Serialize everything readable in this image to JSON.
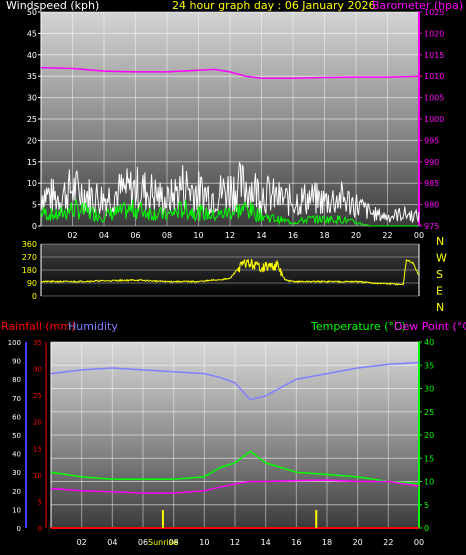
{
  "header": {
    "windspeed_label": "Windspeed (kph)",
    "title": "24 hour graph day : 06 January 2026",
    "barometer_label": "Barometer (hpa)"
  },
  "labels": {
    "rainfall": "Rainfall (mm)",
    "humidity": "Humidity",
    "temperature": "Temperature (°C)",
    "dewpoint": "Dew Point (°C)",
    "sunrise": "Sunrise"
  },
  "colors": {
    "windspeed_label": "#ffffff",
    "title": "#ffff00",
    "barometer": "#ff00ff",
    "wind_gust": "#ffffff",
    "wind_avg": "#00ff00",
    "wind_dir": "#ffff00",
    "rainfall": "#ff0000",
    "humidity": "#8080ff",
    "temperature": "#00ff00",
    "dewpoint": "#ff00ff",
    "sun_marker": "#ffff00",
    "axis_blue": "#4040ff"
  },
  "chart_data": [
    {
      "type": "line",
      "name": "wind-barometer",
      "x_ticks": [
        "02",
        "04",
        "06",
        "08",
        "10",
        "12",
        "14",
        "16",
        "18",
        "20",
        "22",
        "00"
      ],
      "y_left_ticks": [
        "0",
        "5",
        "10",
        "15",
        "20",
        "25",
        "30",
        "35",
        "40",
        "45",
        "50"
      ],
      "y_left_range": [
        0,
        50
      ],
      "y_right_ticks": [
        "975",
        "980",
        "985",
        "990",
        "995",
        "1000",
        "1005",
        "1010",
        "1015",
        "1020",
        "1025"
      ],
      "y_right_range": [
        975,
        1025
      ],
      "grid": true,
      "series": [
        {
          "key": "barometer",
          "axis": "right",
          "x": [
            0,
            2,
            4,
            6,
            8,
            10,
            11,
            12,
            13,
            14,
            16,
            18,
            20,
            22,
            24
          ],
          "values": [
            1012,
            1011.8,
            1011.2,
            1011,
            1011,
            1011.4,
            1011.6,
            1011,
            1010,
            1009.5,
            1009.5,
            1009.7,
            1009.8,
            1009.8,
            1010
          ]
        },
        {
          "key": "wind_gust",
          "axis": "left",
          "x": [
            0,
            1,
            2,
            3,
            4,
            5,
            6,
            7,
            8,
            9,
            10,
            11,
            12,
            13,
            14,
            15,
            16,
            17,
            18,
            19,
            20,
            21,
            22,
            23,
            24
          ],
          "values": [
            11,
            9,
            12,
            10,
            9,
            11,
            12,
            11,
            8,
            13,
            11,
            10,
            12,
            13,
            11,
            9,
            8,
            9,
            8,
            9,
            7,
            4,
            3,
            4,
            3
          ]
        },
        {
          "key": "wind_avg",
          "axis": "left",
          "x": [
            0,
            1,
            2,
            3,
            4,
            5,
            6,
            7,
            8,
            9,
            10,
            11,
            12,
            13,
            14,
            15,
            16,
            17,
            18,
            19,
            20,
            21,
            22,
            23,
            24
          ],
          "values": [
            4,
            3,
            5,
            4,
            3,
            4,
            5,
            4,
            3,
            5,
            4,
            3,
            4,
            5,
            3,
            2,
            1,
            2,
            2,
            2,
            1,
            0,
            0,
            0,
            0
          ]
        }
      ]
    },
    {
      "type": "line",
      "name": "wind-direction",
      "y_ticks": [
        "360",
        "270",
        "180",
        "90",
        "0"
      ],
      "y_range": [
        0,
        360
      ],
      "y_right_labels": [
        "N",
        "W",
        "S",
        "E",
        "N"
      ],
      "series": [
        {
          "key": "wind_dir",
          "x": [
            0,
            2,
            4,
            6,
            8,
            10,
            11,
            12,
            12.5,
            13,
            14,
            15,
            15.5,
            16,
            18,
            20,
            21,
            22,
            23,
            23.2,
            23.6,
            24
          ],
          "values": [
            100,
            100,
            105,
            110,
            100,
            100,
            110,
            120,
            190,
            230,
            200,
            210,
            110,
            100,
            100,
            100,
            90,
            85,
            80,
            250,
            230,
            140
          ]
        }
      ]
    },
    {
      "type": "line",
      "name": "temp-humidity-rain",
      "x_ticks": [
        "02",
        "04",
        "06",
        "08",
        "10",
        "12",
        "14",
        "16",
        "18",
        "20",
        "22",
        "00"
      ],
      "humidity_ticks": [
        "0",
        "10",
        "20",
        "30",
        "40",
        "50",
        "60",
        "70",
        "80",
        "90",
        "100"
      ],
      "humidity_range": [
        0,
        100
      ],
      "rainfall_ticks": [
        "0",
        "5",
        "10",
        "15",
        "20",
        "25",
        "30",
        "35"
      ],
      "rainfall_range": [
        0,
        35
      ],
      "temperature_ticks": [
        "0",
        "5",
        "10",
        "15",
        "20",
        "25",
        "30",
        "35",
        "40"
      ],
      "temperature_range": [
        0,
        40
      ],
      "series": [
        {
          "key": "humidity",
          "x": [
            0,
            2,
            4,
            6,
            8,
            10,
            11,
            12,
            13,
            14,
            16,
            18,
            20,
            22,
            24
          ],
          "values": [
            83,
            85,
            86,
            85,
            84,
            83,
            81,
            78,
            69,
            71,
            80,
            83,
            86,
            88,
            89
          ]
        },
        {
          "key": "temperature",
          "x": [
            0,
            2,
            4,
            6,
            8,
            10,
            11,
            12,
            13,
            14,
            16,
            18,
            20,
            22,
            24
          ],
          "values": [
            12,
            11,
            10.5,
            10.5,
            10.5,
            11,
            13,
            14,
            16.5,
            14,
            12,
            11.5,
            11,
            10,
            9.5
          ]
        },
        {
          "key": "dewpoint",
          "x": [
            0,
            2,
            4,
            6,
            8,
            10,
            12,
            13,
            14,
            16,
            18,
            20,
            22,
            24
          ],
          "values": [
            8.5,
            8,
            7.8,
            7.5,
            7.5,
            8,
            9.5,
            10,
            10,
            10.2,
            10.3,
            10,
            10,
            9
          ]
        },
        {
          "key": "rainfall",
          "x": [
            0,
            24
          ],
          "values": [
            0,
            0
          ]
        }
      ],
      "sun_markers_hours": [
        7.3,
        17.3
      ]
    }
  ]
}
